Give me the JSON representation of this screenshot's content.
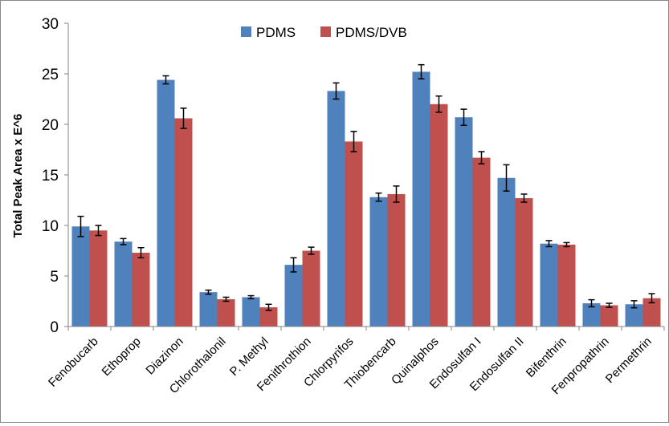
{
  "chart_data": {
    "type": "bar",
    "title": "",
    "xlabel": "",
    "ylabel": "Total Peak Area x E^6",
    "ylim": [
      0,
      30
    ],
    "yticks": [
      0,
      5,
      10,
      15,
      20,
      25,
      30
    ],
    "grid": false,
    "legend_position": "top-center",
    "categories": [
      "Fenobucarb",
      "Ethoprop",
      "Diazinon",
      "Chlorothalonil",
      "P. Methyl",
      "Fenithrothion",
      "Chlorpyrifos",
      "Thiobencarb",
      "Quinalphos",
      "Endosulfan I",
      "Endosulfan II",
      "Bifenthrin",
      "Fenpropathrin",
      "Permethrin"
    ],
    "series": [
      {
        "name": "PDMS",
        "color": "#4f81bd",
        "values": [
          9.9,
          8.4,
          24.4,
          3.4,
          2.9,
          6.1,
          23.3,
          12.8,
          25.2,
          20.7,
          14.7,
          8.2,
          2.3,
          2.2
        ],
        "errors": [
          1.0,
          0.3,
          0.4,
          0.2,
          0.15,
          0.7,
          0.8,
          0.4,
          0.7,
          0.8,
          1.3,
          0.3,
          0.35,
          0.35
        ]
      },
      {
        "name": "PDMS/DVB",
        "color": "#c0504d",
        "values": [
          9.5,
          7.3,
          20.6,
          2.7,
          1.9,
          7.5,
          18.3,
          13.1,
          22.0,
          16.7,
          12.7,
          8.1,
          2.1,
          2.8
        ],
        "errors": [
          0.5,
          0.5,
          1.0,
          0.2,
          0.3,
          0.35,
          1.0,
          0.8,
          0.8,
          0.6,
          0.4,
          0.2,
          0.2,
          0.45
        ]
      }
    ]
  }
}
